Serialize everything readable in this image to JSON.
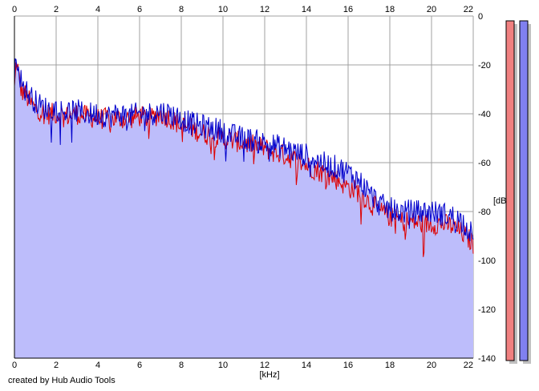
{
  "credit": "created by Hub Audio Tools",
  "chart_data": {
    "type": "area",
    "x_unit": "[kHz]",
    "y_unit": "[dB]",
    "xlim": [
      0,
      22
    ],
    "ylim": [
      -140,
      0
    ],
    "x_ticks": [
      "0",
      "2",
      "4",
      "6",
      "8",
      "10",
      "12",
      "14",
      "16",
      "18",
      "20",
      "22"
    ],
    "y_ticks": [
      "0",
      "-20",
      "-40",
      "-60",
      "-80",
      "-100",
      "-120",
      "-140"
    ],
    "grid": true,
    "series": [
      {
        "color": "#dd0000",
        "x": [
          0.0,
          0.1,
          0.2,
          0.3,
          0.5,
          0.8,
          1.0,
          1.3,
          1.6,
          2.0,
          2.5,
          3.0,
          3.5,
          4.0,
          4.5,
          5.0,
          5.5,
          6.0,
          6.5,
          7.0,
          7.5,
          8.0,
          8.5,
          9.0,
          9.5,
          10.0,
          10.5,
          11.0,
          11.5,
          12.0,
          12.5,
          13.0,
          13.5,
          14.0,
          14.5,
          15.0,
          15.5,
          16.0,
          16.5,
          17.0,
          17.5,
          18.0,
          18.5,
          19.0,
          19.5,
          20.0,
          20.5,
          21.0,
          21.5,
          22.0
        ],
        "y": [
          -30,
          -18,
          -24,
          -30,
          -32,
          -36,
          -38,
          -39,
          -40,
          -40,
          -41,
          -40,
          -41,
          -42,
          -42,
          -42,
          -42,
          -41,
          -42,
          -40,
          -42,
          -45,
          -46,
          -48,
          -49,
          -50,
          -51,
          -52,
          -53,
          -54,
          -56,
          -57,
          -59,
          -61,
          -63,
          -65,
          -67,
          -70,
          -72,
          -76,
          -80,
          -82,
          -84,
          -84,
          -85,
          -85,
          -85,
          -86,
          -89,
          -93
        ]
      },
      {
        "color": "#0000cc",
        "x": [
          0.0,
          0.1,
          0.2,
          0.3,
          0.5,
          0.8,
          1.0,
          1.3,
          1.6,
          2.0,
          2.5,
          3.0,
          3.5,
          4.0,
          4.5,
          5.0,
          5.5,
          6.0,
          6.5,
          7.0,
          7.5,
          8.0,
          8.5,
          9.0,
          9.5,
          10.0,
          10.5,
          11.0,
          11.5,
          12.0,
          12.5,
          13.0,
          13.5,
          14.0,
          14.5,
          15.0,
          15.5,
          16.0,
          16.5,
          17.0,
          17.5,
          18.0,
          18.5,
          19.0,
          19.5,
          20.0,
          20.5,
          21.0,
          21.5,
          22.0
        ],
        "y": [
          -26,
          -16,
          -20,
          -26,
          -30,
          -33,
          -35,
          -37,
          -38,
          -38,
          -39,
          -39,
          -40,
          -40,
          -41,
          -40,
          -41,
          -40,
          -40,
          -39,
          -40,
          -42,
          -44,
          -45,
          -46,
          -47,
          -49,
          -50,
          -51,
          -52,
          -53,
          -54,
          -56,
          -57,
          -59,
          -61,
          -62,
          -64,
          -67,
          -72,
          -77,
          -79,
          -80,
          -80,
          -80,
          -80,
          -81,
          -82,
          -84,
          -90
        ]
      }
    ]
  },
  "meters": [
    {
      "color": "#f08080",
      "level": -140
    },
    {
      "color": "#8080f0",
      "level": -140
    }
  ]
}
